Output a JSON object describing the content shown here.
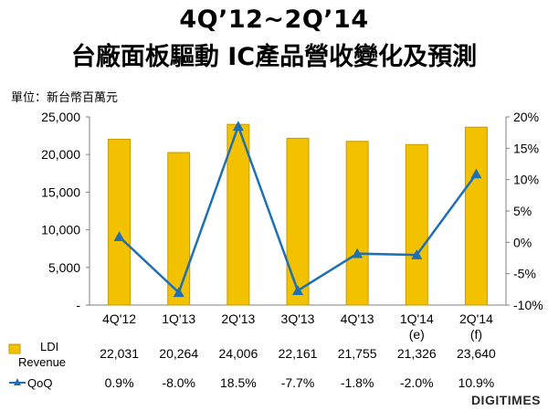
{
  "title_line1": "4Q’12~2Q’14",
  "title_line2": "台廠面板驅動 IC產品營收變化及預測",
  "unit_label": "單位：新台幣百萬元",
  "brand": "DIGITIMES",
  "colors": {
    "bar": "#f2c200",
    "bar_edge": "#c79a00",
    "line": "#1f6fb5",
    "axis": "#808080"
  },
  "chart_data": {
    "type": "bar+line",
    "categories": [
      "4Q'12",
      "1Q'13",
      "2Q'13",
      "3Q'13",
      "4Q'13",
      "1Q'14\n(e)",
      "2Q'14\n(f)"
    ],
    "series": [
      {
        "name": "LDI Revenue",
        "type": "bar",
        "axis": "left",
        "values": [
          22031,
          20264,
          24006,
          22161,
          21755,
          21326,
          23640
        ],
        "labels": [
          "22,031",
          "20,264",
          "24,006",
          "22,161",
          "21,755",
          "21,326",
          "23,640"
        ]
      },
      {
        "name": "QoQ",
        "type": "line",
        "axis": "right",
        "values": [
          0.9,
          -8.0,
          18.5,
          -7.7,
          -1.8,
          -2.0,
          10.9
        ],
        "labels": [
          "0.9%",
          "-8.0%",
          "18.5%",
          "-7.7%",
          "-1.8%",
          "-2.0%",
          "10.9%"
        ]
      }
    ],
    "y_left": {
      "range": [
        0,
        25000
      ],
      "ticks": [
        "-",
        "5,000",
        "10,000",
        "15,000",
        "20,000",
        "25,000"
      ]
    },
    "y_right": {
      "range": [
        -10,
        20
      ],
      "ticks": [
        "-10%",
        "-5%",
        "0%",
        "5%",
        "10%",
        "15%",
        "20%"
      ]
    },
    "legend": "data-table",
    "grid": false
  }
}
